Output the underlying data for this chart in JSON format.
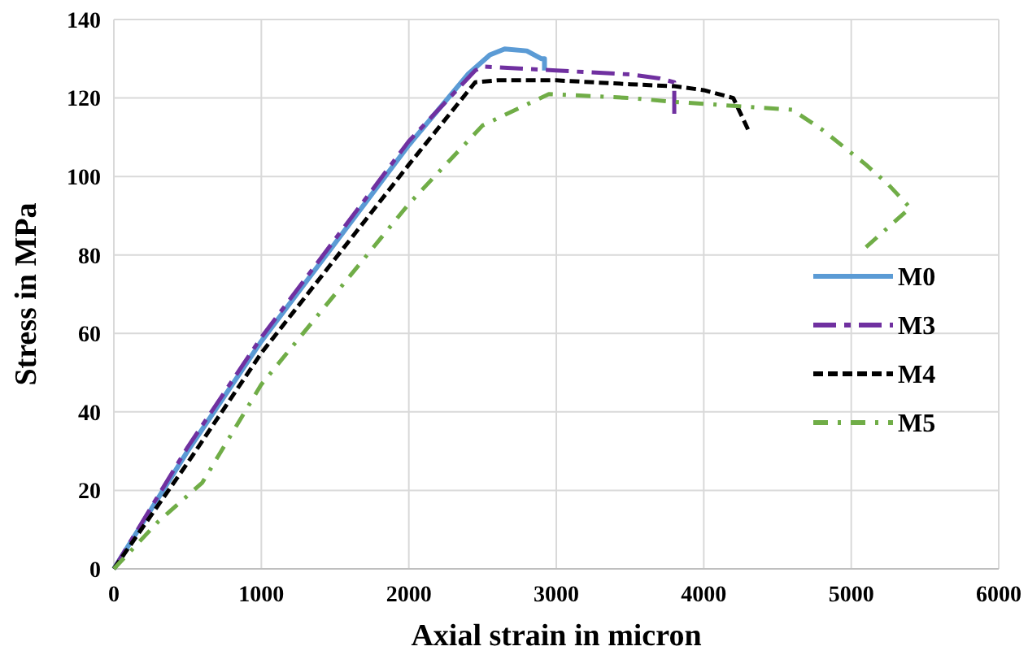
{
  "chart_data": {
    "type": "line",
    "xlabel": "Axial strain in micron",
    "ylabel": "Stress in MPa",
    "xlim": [
      0,
      6000
    ],
    "xticks": [
      0,
      1000,
      2000,
      3000,
      4000,
      5000,
      6000
    ],
    "ylim": [
      0,
      140
    ],
    "yticks": [
      0,
      20,
      40,
      60,
      80,
      100,
      120,
      140
    ],
    "grid": true,
    "legend": "right",
    "series": [
      {
        "name": "M0",
        "color": "#5b9bd5",
        "line_style": "solid",
        "x": [
          0,
          500,
          1000,
          1500,
          2000,
          2400,
          2550,
          2650,
          2800,
          2900,
          2920,
          2920
        ],
        "values": [
          0,
          30,
          58,
          83,
          108,
          126,
          131,
          132.5,
          132,
          130,
          130,
          127
        ]
      },
      {
        "name": "M3",
        "color": "#7030a0",
        "line_style": "longdash",
        "x": [
          0,
          500,
          1000,
          1500,
          2000,
          2450,
          2500,
          3000,
          3500,
          3700,
          3800,
          3800
        ],
        "values": [
          0,
          31,
          59,
          84,
          109,
          127,
          128,
          127,
          126,
          125,
          124,
          116
        ]
      },
      {
        "name": "M4",
        "color": "#000000",
        "line_style": "dashed",
        "x": [
          0,
          500,
          1000,
          1500,
          2000,
          2450,
          2600,
          3000,
          3500,
          3800,
          4000,
          4200,
          4300
        ],
        "values": [
          0,
          27,
          55,
          79,
          103,
          124,
          124.5,
          124.5,
          123.5,
          123,
          122,
          120,
          112
        ]
      },
      {
        "name": "M5",
        "color": "#70ad47",
        "line_style": "dashdot",
        "x": [
          0,
          300,
          600,
          1000,
          1500,
          2000,
          2500,
          2950,
          3500,
          3800,
          4200,
          4600,
          4800,
          5100,
          5250,
          5400,
          5100
        ],
        "values": [
          0,
          12,
          22,
          47,
          70,
          93,
          113,
          121,
          120,
          119,
          118,
          117,
          112,
          103,
          98,
          92,
          82
        ]
      }
    ]
  }
}
